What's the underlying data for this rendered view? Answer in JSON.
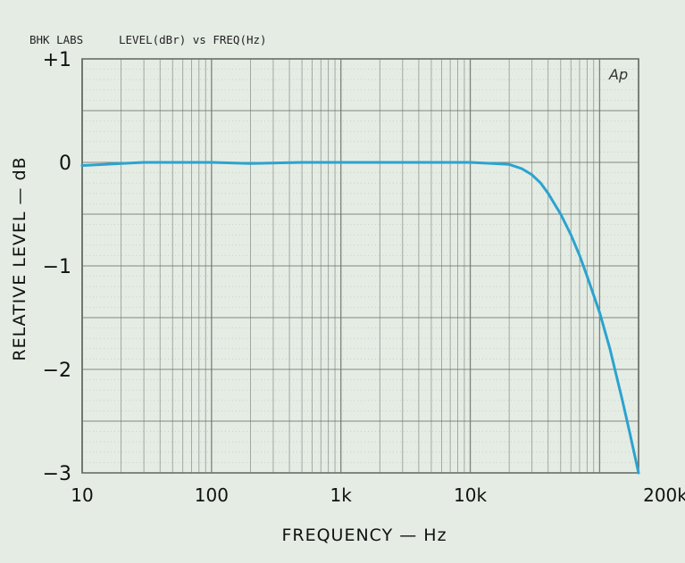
{
  "header": {
    "lab": "BHK LABS",
    "measure": "LEVEL(dBr) vs FREQ(Hz)",
    "logo": "Ap"
  },
  "chart_data": {
    "type": "line",
    "xscale": "log",
    "xlim": [
      10,
      200000
    ],
    "ylim": [
      -3,
      1
    ],
    "xlabel": "FREQUENCY — Hz",
    "ylabel": "RELATIVE LEVEL — dB",
    "x_ticks": [
      {
        "value": 10,
        "label": "10"
      },
      {
        "value": 100,
        "label": "100"
      },
      {
        "value": 1000,
        "label": "1k"
      },
      {
        "value": 10000,
        "label": "10k"
      },
      {
        "value": 200000,
        "label": "200k"
      }
    ],
    "y_ticks": [
      {
        "value": 1,
        "label": "+1"
      },
      {
        "value": 0,
        "label": "0"
      },
      {
        "value": -1,
        "label": "−1"
      },
      {
        "value": -2,
        "label": "−2"
      },
      {
        "value": -3,
        "label": "−3"
      }
    ],
    "grid": true,
    "line_color": "#2ba3cf",
    "grid_color": "#6f756f",
    "series": [
      {
        "x": [
          10,
          15,
          20,
          30,
          60,
          100,
          200,
          500,
          1000,
          2000,
          5000,
          10000,
          15000,
          20000,
          25000,
          30000,
          35000,
          40000,
          50000,
          60000,
          70000,
          80000,
          100000,
          120000,
          150000,
          170000,
          200000
        ],
        "y": [
          -0.03,
          -0.02,
          -0.01,
          0,
          0,
          0,
          -0.01,
          0,
          0,
          0,
          0,
          0,
          -0.01,
          -0.02,
          -0.06,
          -0.12,
          -0.2,
          -0.3,
          -0.5,
          -0.7,
          -0.9,
          -1.1,
          -1.45,
          -1.8,
          -2.3,
          -2.6,
          -3.0
        ]
      }
    ]
  }
}
